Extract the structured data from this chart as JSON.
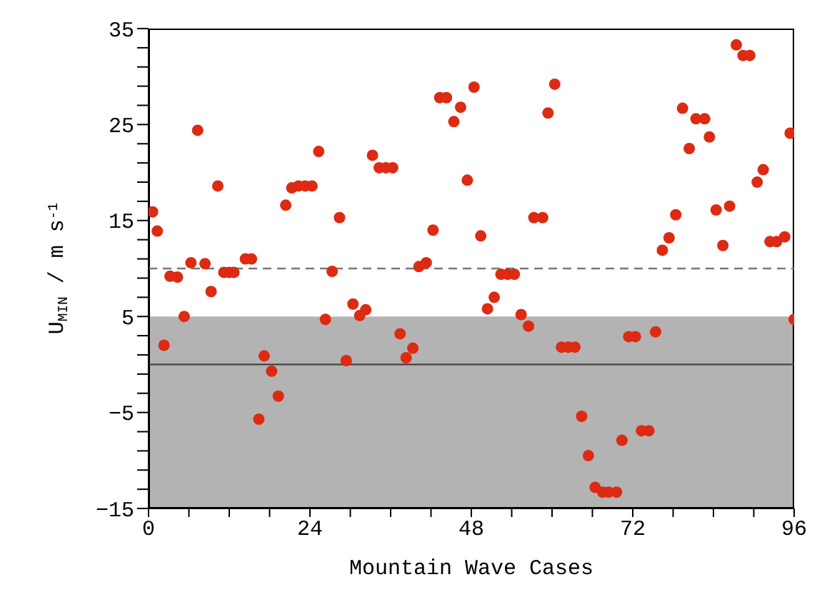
{
  "chart_data": {
    "type": "scatter",
    "xlabel": "Mountain Wave Cases",
    "ylabel": "U$_{MIN}$ / m s$^{-1}$",
    "x": [
      0.6,
      1.3,
      2.3,
      3.2,
      4.3,
      5.3,
      6.3,
      7.3,
      8.4,
      9.3,
      10.3,
      11.2,
      12.0,
      12.7,
      14.4,
      15.3,
      16.4,
      17.2,
      18.3,
      19.3,
      20.4,
      21.3,
      22.3,
      23.3,
      24.3,
      25.3,
      26.3,
      27.3,
      28.4,
      29.4,
      30.4,
      31.4,
      32.3,
      33.3,
      34.3,
      35.3,
      36.3,
      37.4,
      38.3,
      39.3,
      40.2,
      41.3,
      42.3,
      43.3,
      44.3,
      45.4,
      46.4,
      47.4,
      48.4,
      49.4,
      50.4,
      51.4,
      52.4,
      53.4,
      54.4,
      55.4,
      56.5,
      57.3,
      58.6,
      59.4,
      60.4,
      61.4,
      62.4,
      63.4,
      64.4,
      65.4,
      66.4,
      67.5,
      68.4,
      69.6,
      70.4,
      71.4,
      72.4,
      73.3,
      74.4,
      75.4,
      76.4,
      77.4,
      78.4,
      79.4,
      80.4,
      81.4,
      82.7,
      83.4,
      84.4,
      85.4,
      86.4,
      87.4,
      88.4,
      89.4,
      90.5,
      91.4,
      92.4,
      93.4,
      94.6,
      95.4,
      96
    ],
    "series": [
      {
        "color": "#dd2a12",
        "values": [
          15.9,
          13.9,
          2.0,
          9.2,
          9.1,
          5.0,
          10.6,
          24.4,
          10.5,
          7.6,
          18.6,
          9.6,
          9.6,
          9.6,
          11.0,
          11.0,
          -5.7,
          0.9,
          -0.7,
          -3.3,
          16.6,
          18.4,
          18.6,
          18.6,
          18.6,
          22.2,
          4.7,
          9.7,
          15.3,
          0.4,
          6.3,
          5.1,
          5.7,
          21.8,
          20.5,
          20.5,
          20.5,
          3.2,
          0.7,
          1.7,
          10.2,
          10.6,
          14.0,
          27.8,
          27.8,
          25.3,
          26.8,
          19.2,
          28.9,
          13.4,
          5.8,
          7.0,
          9.4,
          9.4,
          9.4,
          5.2,
          4.0,
          15.3,
          15.3,
          26.2,
          29.2,
          1.8,
          1.8,
          1.8,
          -5.4,
          -9.5,
          -12.8,
          -13.3,
          -13.3,
          -13.3,
          -7.9,
          2.9,
          2.9,
          -6.9,
          -6.9,
          3.4,
          11.9,
          13.2,
          15.6,
          26.7,
          22.5,
          25.6,
          25.6,
          23.7,
          16.1,
          12.4,
          16.5,
          33.3,
          32.2,
          32.2,
          19.0,
          20.3,
          12.8,
          12.8,
          13.3,
          24.1,
          4.7
        ]
      }
    ],
    "xlim": [
      0,
      96
    ],
    "xticks": [
      0,
      {
        "value": 6,
        "label": null
      },
      {
        "value": 12,
        "label": null
      },
      {
        "value": 18,
        "label": null
      },
      24,
      {
        "value": 30,
        "label": null
      },
      {
        "value": 36,
        "label": null
      },
      {
        "value": 42,
        "label": null
      },
      48,
      {
        "value": 54,
        "label": null
      },
      {
        "value": 60,
        "label": null
      },
      {
        "value": 66,
        "label": null
      },
      72,
      {
        "value": 78,
        "label": null
      },
      {
        "value": 84,
        "label": null
      },
      {
        "value": 90,
        "label": null
      },
      96
    ],
    "ylim": [
      -15,
      35
    ],
    "yticks": [
      -15,
      {
        "value": -13,
        "label": null
      },
      {
        "value": -11,
        "label": null
      },
      {
        "value": -9,
        "label": null
      },
      {
        "value": -7,
        "label": null
      },
      -5,
      {
        "value": -3,
        "label": null
      },
      {
        "value": -1,
        "label": null
      },
      {
        "value": 1,
        "label": null
      },
      {
        "value": 3,
        "label": null
      },
      5,
      {
        "value": 7,
        "label": null
      },
      {
        "value": 9,
        "label": null
      },
      {
        "value": 11,
        "label": null
      },
      {
        "value": 13,
        "label": null
      },
      15,
      {
        "value": 17,
        "label": null
      },
      {
        "value": 19,
        "label": null
      },
      {
        "value": 21,
        "label": null
      },
      {
        "value": 23,
        "label": null
      },
      25,
      {
        "value": 27,
        "label": null
      },
      {
        "value": 29,
        "label": null
      },
      {
        "value": 31,
        "label": null
      },
      {
        "value": 33,
        "label": null
      },
      35
    ],
    "bands": [
      {
        "axis": "y",
        "from": -15,
        "to": 5,
        "color": "#b3b3b3"
      }
    ],
    "ref_lines": [
      {
        "axis": "y",
        "value": 10,
        "color": "#777777",
        "line_style": "dashed"
      },
      {
        "axis": "y",
        "value": 0,
        "color": "#444444",
        "line_style": "solid"
      }
    ],
    "marker": "circle"
  }
}
